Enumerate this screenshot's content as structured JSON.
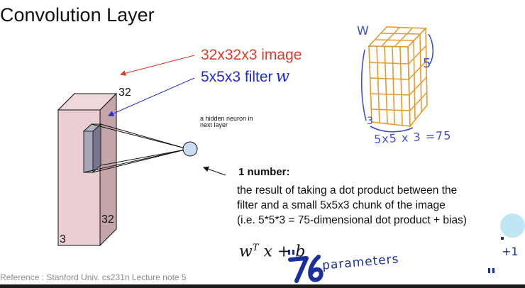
{
  "title": "Convolution Layer",
  "labels": {
    "image": "32x32x3 image",
    "filter": "5x5x3 filter",
    "filter_var": "w",
    "dim_top": "32",
    "dim_bottom": "32",
    "dim_depth": "3",
    "neuron": "a hidden neuron in next layer"
  },
  "result": {
    "heading": "1 number:",
    "line1": "the result of taking a dot product between the",
    "line2": "filter and a small 5x5x3 chunk of the image",
    "line3": "(i.e. 5*5*3 = 75-dimensional dot product + bias)",
    "formula_w": "w",
    "formula_sup": "T",
    "formula_rest": " x + b"
  },
  "handwritten": {
    "w": "W",
    "five": "5",
    "three": "3",
    "product": "5x5 x 3 =75",
    "count": "76",
    "params": "parameters",
    "plus_one": "+1"
  },
  "reference": "Reference : Stanford Univ. cs231n Lecture note 5",
  "colors": {
    "image_label": "#e03a2a",
    "filter_label": "#1f2bd6",
    "handwriting": "#3f52c8",
    "cube": "#e69a2e",
    "highlight": "#bfe6f5"
  }
}
